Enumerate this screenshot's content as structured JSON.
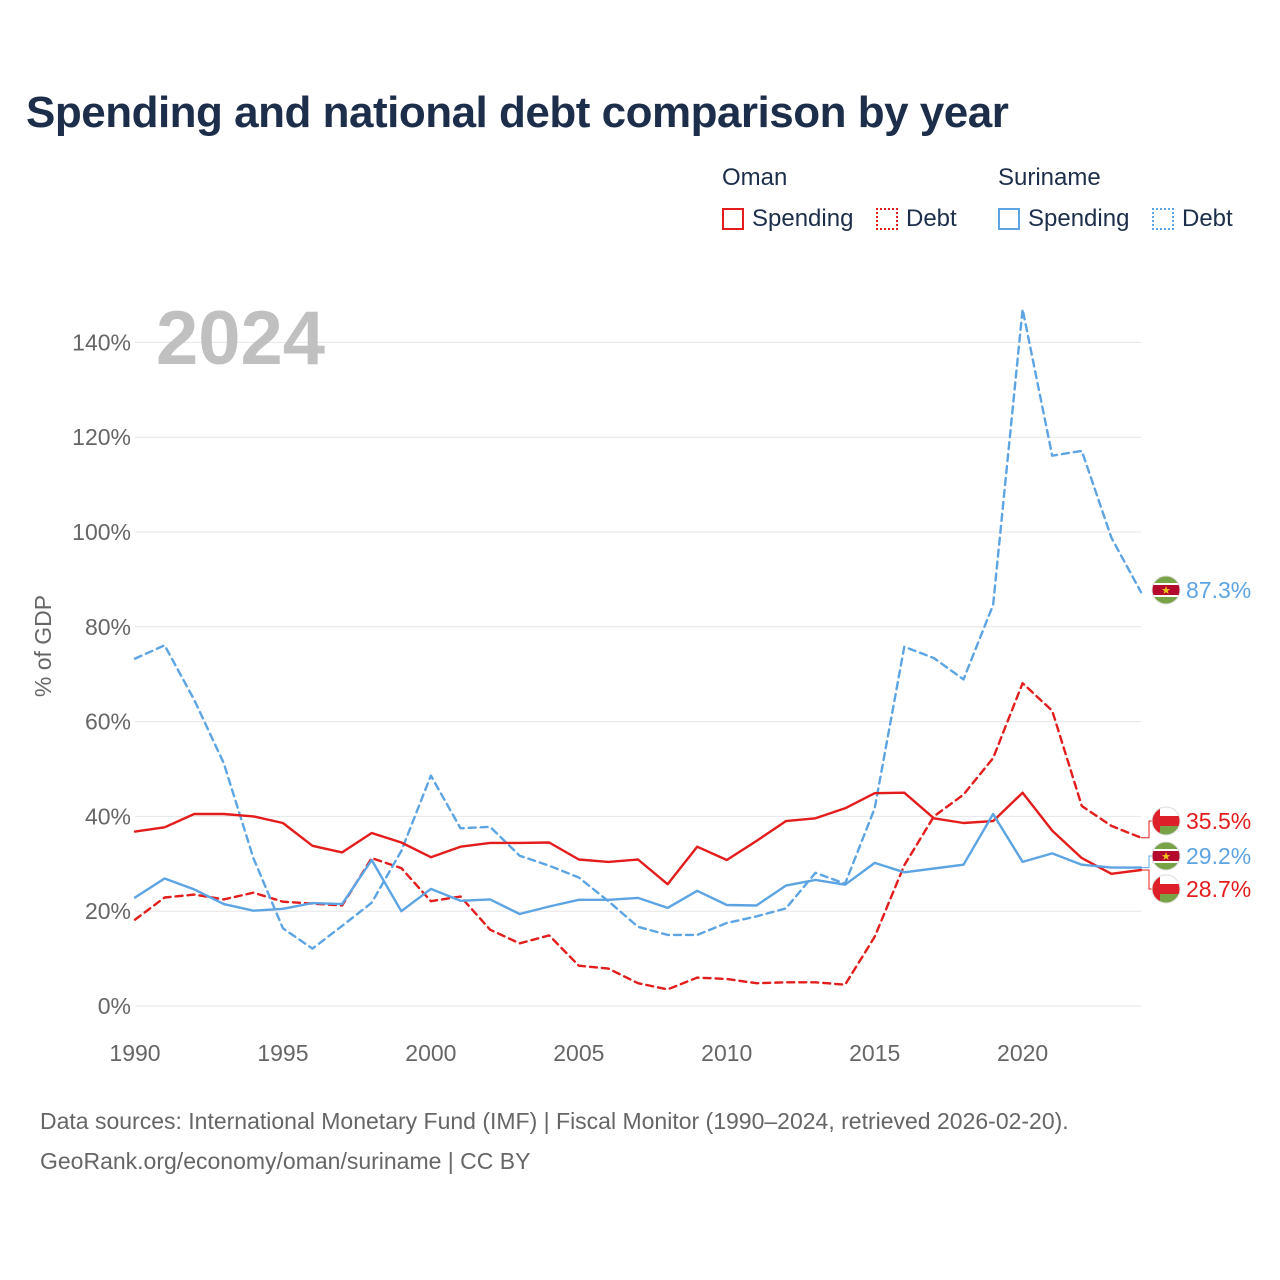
{
  "title": "Spending and national debt comparison by year",
  "legend": {
    "groups": [
      {
        "name": "Oman",
        "color": "#e31c1c",
        "items": [
          "Spending",
          "Debt"
        ]
      },
      {
        "name": "Suriname",
        "color": "#5da4e3",
        "items": [
          "Spending",
          "Debt"
        ]
      }
    ]
  },
  "footer": {
    "line1": "Data sources: International Monetary Fund (IMF) | Fiscal Monitor (1990–2024, retrieved 2026-02-20).",
    "line2": "GeoRank.org/economy/oman/suriname | CC BY"
  },
  "chart_data": {
    "type": "line",
    "title": "Spending and national debt comparison by year",
    "xlabel": "",
    "ylabel": "% of GDP",
    "year_label": "2024",
    "xlim": [
      1990,
      2024
    ],
    "ylim": [
      0,
      150
    ],
    "x_ticks": [
      1990,
      1995,
      2000,
      2005,
      2010,
      2015,
      2020
    ],
    "y_ticks": [
      0,
      20,
      40,
      60,
      80,
      100,
      120,
      140
    ],
    "y_tick_labels": [
      "0%",
      "20%",
      "40%",
      "60%",
      "80%",
      "100%",
      "120%",
      "140%"
    ],
    "grid": true,
    "x": [
      1990,
      1991,
      1992,
      1993,
      1994,
      1995,
      1996,
      1997,
      1998,
      1999,
      2000,
      2001,
      2002,
      2003,
      2004,
      2005,
      2006,
      2007,
      2008,
      2009,
      2010,
      2011,
      2012,
      2013,
      2014,
      2015,
      2016,
      2017,
      2018,
      2019,
      2020,
      2021,
      2022,
      2023,
      2024
    ],
    "series": [
      {
        "name": "Oman Spending",
        "country": "Oman",
        "metric": "Spending",
        "color": "#e31c1c",
        "dash": "solid",
        "values": [
          36.8,
          37.7,
          40.5,
          40.5,
          40.0,
          38.6,
          33.8,
          32.4,
          36.5,
          34.5,
          31.4,
          33.6,
          34.4,
          34.4,
          34.5,
          30.9,
          30.4,
          30.9,
          25.7,
          33.6,
          30.8,
          34.8,
          39.0,
          39.6,
          41.7,
          44.9,
          45.0,
          39.6,
          38.6,
          39.0,
          45.0,
          37.0,
          31.2,
          27.9,
          28.7
        ],
        "end_label": "28.7%"
      },
      {
        "name": "Oman Debt",
        "country": "Oman",
        "metric": "Debt",
        "color": "#e31c1c",
        "dash": "dashed",
        "values": [
          18.2,
          22.9,
          23.5,
          22.5,
          23.9,
          22.0,
          21.6,
          21.2,
          31.2,
          29.1,
          22.1,
          23.1,
          16.1,
          13.2,
          14.9,
          8.5,
          7.9,
          4.8,
          3.5,
          6.0,
          5.7,
          4.8,
          5.0,
          5.0,
          4.5,
          14.6,
          29.7,
          40.0,
          44.6,
          52.3,
          68.1,
          62.3,
          42.2,
          38.0,
          35.5
        ],
        "end_label": "35.5%"
      },
      {
        "name": "Suriname Spending",
        "country": "Suriname",
        "metric": "Spending",
        "color": "#5da4e3",
        "dash": "solid",
        "values": [
          22.9,
          26.9,
          24.6,
          21.5,
          20.1,
          20.5,
          21.7,
          21.5,
          30.8,
          20.0,
          24.7,
          22.2,
          22.5,
          19.4,
          21.0,
          22.4,
          22.4,
          22.8,
          20.7,
          24.3,
          21.3,
          21.2,
          25.4,
          26.6,
          25.6,
          30.2,
          28.2,
          29.0,
          29.8,
          40.5,
          30.4,
          32.2,
          29.8,
          29.2,
          29.2
        ],
        "end_label": "29.2%"
      },
      {
        "name": "Suriname Debt",
        "country": "Suriname",
        "metric": "Debt",
        "color": "#5da4e3",
        "dash": "dashed",
        "values": [
          73.3,
          76.1,
          64.6,
          51.2,
          31.2,
          16.4,
          12.1,
          16.9,
          21.8,
          32.7,
          48.6,
          37.5,
          37.8,
          31.7,
          29.6,
          27.1,
          22.1,
          16.7,
          15.0,
          15.0,
          17.5,
          18.9,
          20.6,
          28.1,
          25.8,
          41.7,
          75.8,
          73.4,
          68.9,
          84.6,
          147.0,
          116.1,
          117.1,
          98.8,
          87.3
        ],
        "end_label": "87.3%"
      }
    ]
  }
}
